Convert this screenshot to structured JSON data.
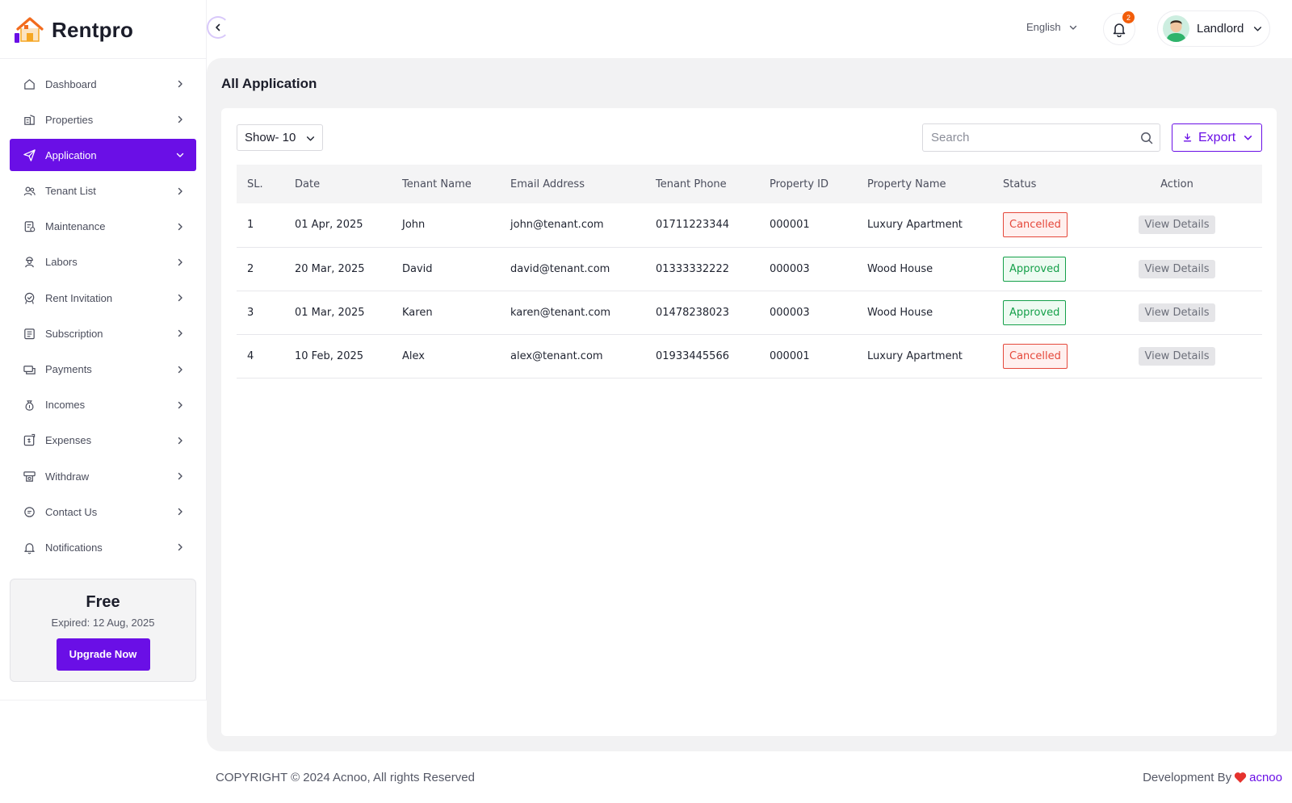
{
  "app": {
    "name": "Rentpro"
  },
  "sidebar": {
    "items": [
      {
        "label": "Dashboard",
        "icon": "home-icon",
        "active": false
      },
      {
        "label": "Properties",
        "icon": "building-icon",
        "active": false
      },
      {
        "label": "Application",
        "icon": "send-icon",
        "active": true
      },
      {
        "label": "Tenant List",
        "icon": "users-icon",
        "active": false
      },
      {
        "label": "Maintenance",
        "icon": "clipboard-icon",
        "active": false
      },
      {
        "label": "Labors",
        "icon": "worker-icon",
        "active": false
      },
      {
        "label": "Rent Invitation",
        "icon": "invitation-icon",
        "active": false
      },
      {
        "label": "Subscription",
        "icon": "subscription-icon",
        "active": false
      },
      {
        "label": "Payments",
        "icon": "payments-icon",
        "active": false
      },
      {
        "label": "Incomes",
        "icon": "money-bag-icon",
        "active": false
      },
      {
        "label": "Expenses",
        "icon": "expenses-icon",
        "active": false
      },
      {
        "label": "Withdraw",
        "icon": "withdraw-icon",
        "active": false
      },
      {
        "label": "Contact Us",
        "icon": "chat-icon",
        "active": false
      },
      {
        "label": "Notifications",
        "icon": "bell-icon",
        "active": false
      }
    ],
    "plan": {
      "name": "Free",
      "expired": "Expired: 12 Aug, 2025",
      "upgrade_label": "Upgrade Now"
    }
  },
  "topbar": {
    "language": "English",
    "notification_count": "2",
    "user_name": "Landlord"
  },
  "main": {
    "title": "All Application",
    "show_select": "Show- 10",
    "search_placeholder": "Search",
    "export_label": "Export",
    "table": {
      "headers": [
        "SL.",
        "Date",
        "Tenant Name",
        "Email Address",
        "Tenant Phone",
        "Property ID",
        "Property Name",
        "Status",
        "Action"
      ],
      "rows": [
        {
          "sl": "1",
          "date": "01 Apr, 2025",
          "tenant": "John",
          "email": "john@tenant.com",
          "phone": "01711223344",
          "property_id": "000001",
          "property_name": "Luxury Apartment",
          "status": "Cancelled",
          "action": "View Details"
        },
        {
          "sl": "2",
          "date": "20 Mar, 2025",
          "tenant": "David",
          "email": "david@tenant.com",
          "phone": "01333332222",
          "property_id": "000003",
          "property_name": "Wood House",
          "status": "Approved",
          "action": "View Details"
        },
        {
          "sl": "3",
          "date": "01 Mar, 2025",
          "tenant": "Karen",
          "email": "karen@tenant.com",
          "phone": "01478238023",
          "property_id": "000003",
          "property_name": "Wood House",
          "status": "Approved",
          "action": "View Details"
        },
        {
          "sl": "4",
          "date": "10 Feb, 2025",
          "tenant": "Alex",
          "email": "alex@tenant.com",
          "phone": "01933445566",
          "property_id": "000001",
          "property_name": "Luxury Apartment",
          "status": "Cancelled",
          "action": "View Details"
        }
      ]
    }
  },
  "footer": {
    "copyright": "COPYRIGHT © 2024 Acnoo, All rights Reserved",
    "dev_prefix": "Development By",
    "dev_brand": "acnoo"
  },
  "colors": {
    "accent": "#6a0fe6",
    "cancelled": "#e5483b",
    "approved": "#15a04a",
    "badge": "#f25d0a"
  }
}
